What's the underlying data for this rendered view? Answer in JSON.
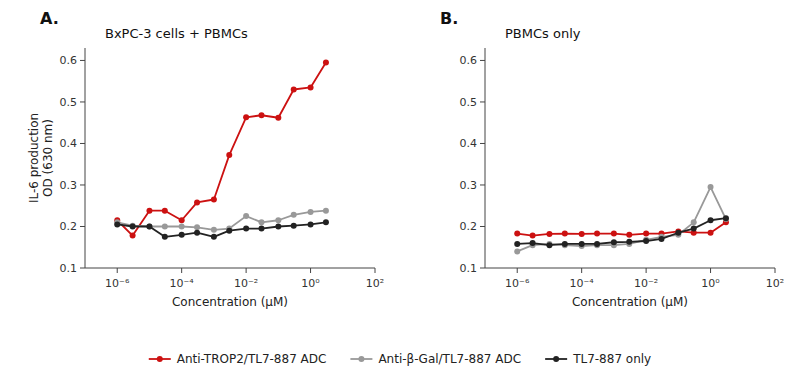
{
  "chart_data": [
    {
      "type": "line",
      "title": "BxPC-3 cells + PBMCs",
      "annotations": [
        "A."
      ],
      "xlabel": "Concentration (μM)",
      "ylabel": "IL-6 production\nOD (630 nm)",
      "log": "x",
      "legend": "bottom",
      "marker": "o",
      "line_style": "solid",
      "xlim": [
        1e-07,
        100
      ],
      "xticks": [
        {
          "value": 1e-06,
          "label": "10⁻⁶"
        },
        {
          "value": 0.0001,
          "label": "10⁻⁴"
        },
        {
          "value": 0.01,
          "label": "10⁻²"
        },
        {
          "value": 1,
          "label": "10⁰"
        },
        {
          "value": 100,
          "label": "10²"
        }
      ],
      "ylim": [
        0.1,
        0.63
      ],
      "yticks": [
        0.1,
        0.2,
        0.3,
        0.4,
        0.5,
        0.6
      ],
      "x": [
        1e-06,
        3e-06,
        1e-05,
        3e-05,
        0.0001,
        0.0003,
        0.001,
        0.003,
        0.01,
        0.03,
        0.1,
        0.3,
        1.0,
        3.0
      ],
      "series": [
        {
          "name": "Anti-TROP2/TL7-887 ADC",
          "color": "#cc1111",
          "values": [
            0.215,
            0.178,
            0.238,
            0.238,
            0.215,
            0.258,
            0.265,
            0.372,
            0.463,
            0.468,
            0.462,
            0.53,
            0.535,
            0.595
          ]
        },
        {
          "name": "Anti-β-Gal/TL7-887 ADC",
          "color": "#999999",
          "values": [
            0.21,
            0.202,
            0.2,
            0.2,
            0.2,
            0.198,
            0.192,
            0.195,
            0.225,
            0.21,
            0.215,
            0.228,
            0.235,
            0.238
          ]
        },
        {
          "name": "TL7-887 only",
          "color": "#222222",
          "values": [
            0.205,
            0.2,
            0.2,
            0.175,
            0.18,
            0.185,
            0.175,
            0.19,
            0.195,
            0.195,
            0.2,
            0.202,
            0.205,
            0.21
          ]
        }
      ]
    },
    {
      "type": "line",
      "title": "PBMCs only",
      "annotations": [
        "B."
      ],
      "xlabel": "Concentration (μM)",
      "log": "x",
      "marker": "o",
      "line_style": "solid",
      "xlim": [
        1e-07,
        100
      ],
      "xticks": [
        {
          "value": 1e-06,
          "label": "10⁻⁶"
        },
        {
          "value": 0.0001,
          "label": "10⁻⁴"
        },
        {
          "value": 0.01,
          "label": "10⁻²"
        },
        {
          "value": 1,
          "label": "10⁰"
        },
        {
          "value": 100,
          "label": "10²"
        }
      ],
      "ylim": [
        0.1,
        0.63
      ],
      "yticks": [
        0.1,
        0.2,
        0.3,
        0.4,
        0.5,
        0.6
      ],
      "x": [
        1e-06,
        3e-06,
        1e-05,
        3e-05,
        0.0001,
        0.0003,
        0.001,
        0.003,
        0.01,
        0.03,
        0.1,
        0.3,
        1.0,
        3.0
      ],
      "series": [
        {
          "color": "#cc1111",
          "values": [
            0.183,
            0.178,
            0.182,
            0.183,
            0.182,
            0.183,
            0.183,
            0.18,
            0.183,
            0.183,
            0.188,
            0.185,
            0.185,
            0.21
          ]
        },
        {
          "color": "#999999",
          "values": [
            0.14,
            0.155,
            0.158,
            0.155,
            0.153,
            0.155,
            0.155,
            0.158,
            0.168,
            0.175,
            0.18,
            0.21,
            0.295,
            0.218
          ]
        },
        {
          "color": "#222222",
          "values": [
            0.158,
            0.16,
            0.155,
            0.158,
            0.158,
            0.158,
            0.162,
            0.163,
            0.165,
            0.17,
            0.185,
            0.195,
            0.215,
            0.22
          ]
        }
      ]
    }
  ]
}
